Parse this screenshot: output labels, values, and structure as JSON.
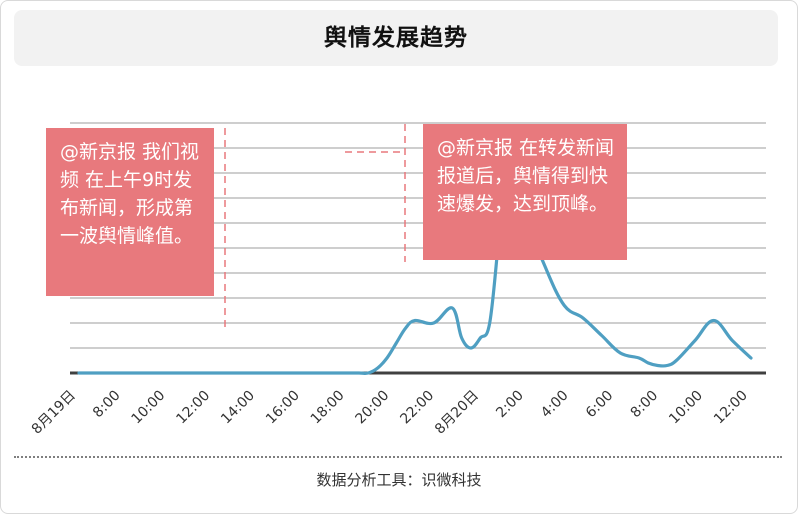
{
  "header": {
    "title": "舆情发展趋势"
  },
  "footer": {
    "source": "数据分析工具：识微科技"
  },
  "colors": {
    "line": "#4f9fc2",
    "annotation_box": "#e8797d",
    "annotation_text": "#ffffff",
    "gridline": "#b0b0b0",
    "baseline": "#404040",
    "title_bg": "#f2f2f2"
  },
  "annotations": [
    {
      "text": "@新京报 我们视频  在上午9时发布新闻，形成第一波舆情峰值。"
    },
    {
      "text": "@新京报 在转发新闻报道后，舆情得到快速爆发，达到顶峰。"
    }
  ],
  "chart_data": {
    "type": "line",
    "title": "舆情发展趋势",
    "xlabel": "",
    "ylabel": "",
    "x_ticks": [
      "8月19日",
      "8:00",
      "10:00",
      "12:00",
      "14:00",
      "16:00",
      "18:00",
      "20:00",
      "22:00",
      "8月20日",
      "2:00",
      "4:00",
      "6:00",
      "8:00",
      "10:00",
      "12:00"
    ],
    "y_tick_labels": false,
    "ylim": [
      0,
      100
    ],
    "grid": true,
    "legend": "none",
    "x_hours": [
      0,
      2,
      4,
      6,
      8,
      9,
      10,
      11,
      12,
      13,
      14,
      15,
      16,
      17,
      18,
      19,
      20,
      21,
      22,
      23,
      24,
      26,
      28,
      30,
      31,
      32,
      33,
      34,
      35,
      36,
      38,
      40,
      41,
      42,
      43,
      44,
      45,
      46,
      47,
      48,
      50,
      52,
      54,
      56,
      58,
      60,
      61,
      62,
      63,
      64,
      66,
      68,
      70,
      72
    ],
    "series": [
      {
        "values": [
          0,
          0,
          0,
          0,
          0,
          0,
          0,
          0,
          0,
          0,
          0,
          0,
          0,
          0,
          0,
          0,
          0,
          0,
          0,
          0,
          0,
          0,
          0,
          0,
          0,
          2,
          6,
          12,
          18,
          21,
          20,
          26,
          14,
          10,
          14,
          20,
          55,
          95,
          80,
          62,
          42,
          27,
          22,
          15,
          8,
          6,
          4,
          3,
          3,
          5,
          13,
          21,
          13,
          6
        ]
      }
    ]
  }
}
